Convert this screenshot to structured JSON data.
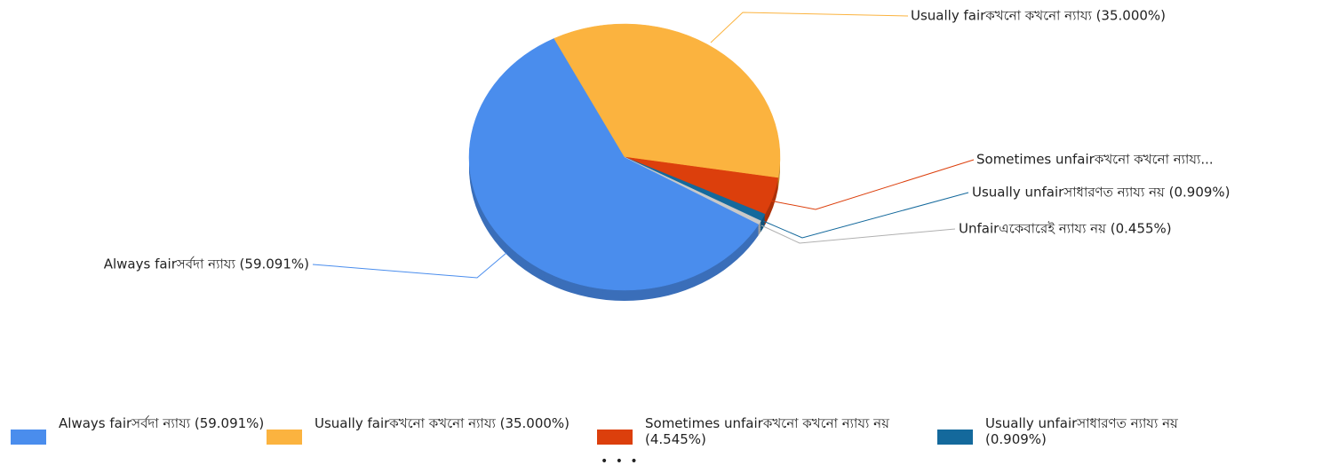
{
  "chart_data": {
    "type": "pie",
    "categories": [
      "Always fairসর্বদা ন্যায্য",
      "Usually fairকখনো কখনো ন্যায্য",
      "Sometimes unfairকখনো কখনো ন্যায্য নয়",
      "Usually unfairসাধারণত ন্যায্য নয়",
      "Unfairএকেবারেই ন্যায্য নয়"
    ],
    "values": [
      59.091,
      35.0,
      4.545,
      0.909,
      0.455
    ],
    "value_labels": [
      "(59.091%)",
      "(35.000%)",
      "(4.545%)",
      "(0.909%)",
      "(0.455%)"
    ],
    "callout_labels": [
      "Always fairসর্বদা ন্যায্য (59.091%)",
      "Usually fairকখনো কখনো ন্যায্য (35.000%)",
      "Sometimes unfairকখনো কখনো ন্যায্য...",
      "Usually unfairসাধারণত ন্যায্য নয় (0.909%)",
      "Unfairএকেবারেই ন্যায্য নয় (0.455%)"
    ],
    "colors": [
      "#4a8ded",
      "#fbb33f",
      "#dc3f0c",
      "#14699c",
      "#c9c9c9"
    ],
    "legend_more": "• • •"
  }
}
